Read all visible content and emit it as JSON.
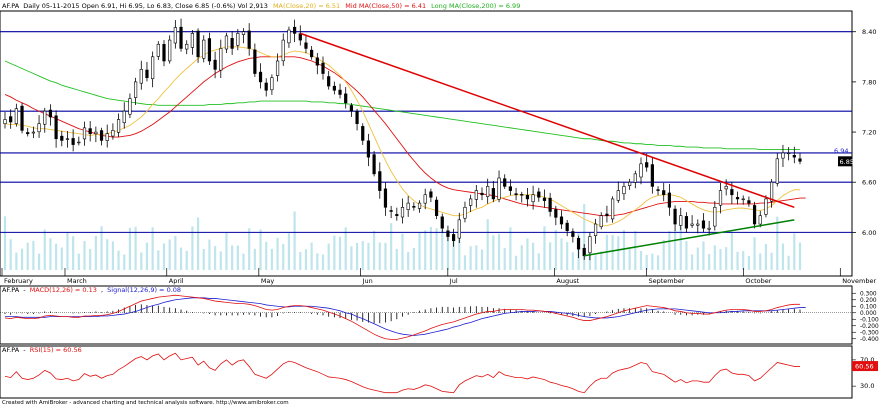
{
  "chart_data": [
    {
      "type": "candlestick",
      "ticker": "AF.PA",
      "header": {
        "symbol": "AF.PA",
        "info": "Daily 05-11-2015 Open 6.91, Hi 6.95, Lo 6.83, Close 6.85 (-0.6%) Vol 2,913",
        "ma20_label": "MA(Close,20) = 6.51",
        "ma50_label": "Mid MA(Close,50) = 6.41",
        "ma200_label": "Long MA(Close,200) = 6.99"
      },
      "colors": {
        "ma20": "#f0c040",
        "ma50": "#e01010",
        "ma200": "#20c020",
        "volume": "#bfe5ec",
        "candle": "#000000",
        "hline": "#0000a0",
        "downtrend": "#e00000",
        "uptrend": "#008000"
      },
      "ylim": [
        5.55,
        8.6
      ],
      "yticks": [
        "8.40",
        "7.80",
        "7.20",
        "6.60",
        "6.00"
      ],
      "horizontal_lines": [
        8.4,
        7.45,
        6.95,
        6.6,
        6.0
      ],
      "price_badge": "6.85",
      "level_label": "6.94",
      "months": [
        "February",
        "March",
        "April",
        "May",
        "Jun",
        "Jul",
        "August",
        "September",
        "October",
        "November"
      ],
      "closes": [
        7.35,
        7.32,
        7.48,
        7.22,
        7.18,
        7.2,
        7.3,
        7.45,
        7.38,
        7.12,
        7.1,
        7.12,
        7.05,
        7.08,
        7.25,
        7.18,
        7.2,
        7.1,
        7.18,
        7.22,
        7.35,
        7.45,
        7.6,
        7.8,
        7.95,
        7.85,
        8.1,
        8.25,
        8.05,
        8.3,
        8.45,
        8.2,
        8.25,
        8.38,
        8.1,
        8.3,
        8.05,
        7.95,
        8.2,
        8.35,
        8.2,
        8.38,
        8.4,
        8.2,
        7.9,
        7.8,
        7.7,
        7.85,
        8.05,
        8.3,
        8.42,
        8.38,
        8.3,
        8.2,
        8.1,
        8.0,
        7.9,
        7.75,
        7.7,
        7.65,
        7.55,
        7.45,
        7.3,
        7.1,
        6.9,
        6.7,
        6.5,
        6.3,
        6.25,
        6.2,
        6.3,
        6.35,
        6.3,
        6.35,
        6.45,
        6.42,
        6.2,
        6.05,
        5.95,
        5.9,
        6.15,
        6.3,
        6.4,
        6.5,
        6.45,
        6.55,
        6.4,
        6.65,
        6.55,
        6.5,
        6.45,
        6.45,
        6.4,
        6.45,
        6.42,
        6.38,
        6.25,
        6.18,
        6.1,
        6.02,
        5.95,
        5.8,
        5.72,
        5.95,
        6.1,
        6.2,
        6.2,
        6.4,
        6.5,
        6.55,
        6.6,
        6.7,
        6.82,
        6.78,
        6.55,
        6.5,
        6.45,
        6.3,
        6.1,
        6.2,
        6.05,
        6.1,
        6.1,
        6.05,
        6.05,
        6.3,
        6.5,
        6.55,
        6.45,
        6.4,
        6.4,
        6.35,
        6.1,
        6.2,
        6.4,
        6.6,
        6.88,
        6.95,
        6.95,
        6.9,
        6.85
      ],
      "ma20": [
        7.3,
        7.29,
        7.29,
        7.28,
        7.27,
        7.25,
        7.24,
        7.24,
        7.23,
        7.22,
        7.21,
        7.2,
        7.19,
        7.18,
        7.17,
        7.16,
        7.17,
        7.17,
        7.18,
        7.2,
        7.22,
        7.25,
        7.28,
        7.33,
        7.38,
        7.45,
        7.53,
        7.6,
        7.68,
        7.75,
        7.83,
        7.9,
        7.96,
        8.02,
        8.08,
        8.12,
        8.16,
        8.18,
        8.2,
        8.22,
        8.22,
        8.22,
        8.21,
        8.2,
        8.18,
        8.15,
        8.12,
        8.1,
        8.1,
        8.12,
        8.15,
        8.17,
        8.16,
        8.15,
        8.12,
        8.08,
        8.04,
        8.0,
        7.94,
        7.88,
        7.8,
        7.7,
        7.58,
        7.45,
        7.3,
        7.15,
        7.0,
        6.86,
        6.73,
        6.62,
        6.52,
        6.44,
        6.38,
        6.33,
        6.3,
        6.28,
        6.26,
        6.24,
        6.22,
        6.2,
        6.2,
        6.22,
        6.25,
        6.28,
        6.3,
        6.34,
        6.37,
        6.4,
        6.42,
        6.44,
        6.45,
        6.45,
        6.45,
        6.45,
        6.44,
        6.42,
        6.4,
        6.36,
        6.32,
        6.28,
        6.24,
        6.2,
        6.16,
        6.13,
        6.1,
        6.08,
        6.08,
        6.1,
        6.13,
        6.17,
        6.22,
        6.27,
        6.32,
        6.38,
        6.42,
        6.44,
        6.45,
        6.45,
        6.44,
        6.42,
        6.38,
        6.34,
        6.3,
        6.27,
        6.25,
        6.24,
        6.25,
        6.27,
        6.28,
        6.29,
        6.29,
        6.28,
        6.27,
        6.26,
        6.28,
        6.32,
        6.38,
        6.44,
        6.48,
        6.51,
        6.51
      ],
      "ma50": [
        7.65,
        7.62,
        7.58,
        7.55,
        7.52,
        7.48,
        7.45,
        7.42,
        7.39,
        7.36,
        7.33,
        7.3,
        7.27,
        7.24,
        7.22,
        7.2,
        7.18,
        7.16,
        7.15,
        7.14,
        7.14,
        7.15,
        7.16,
        7.18,
        7.21,
        7.25,
        7.29,
        7.34,
        7.39,
        7.44,
        7.5,
        7.56,
        7.62,
        7.68,
        7.74,
        7.8,
        7.85,
        7.9,
        7.94,
        7.98,
        8.01,
        8.04,
        8.06,
        8.08,
        8.09,
        8.1,
        8.1,
        8.1,
        8.1,
        8.1,
        8.1,
        8.1,
        8.09,
        8.07,
        8.05,
        8.02,
        7.99,
        7.95,
        7.91,
        7.86,
        7.81,
        7.75,
        7.69,
        7.62,
        7.54,
        7.46,
        7.38,
        7.3,
        7.21,
        7.12,
        7.03,
        6.94,
        6.86,
        6.78,
        6.71,
        6.65,
        6.6,
        6.56,
        6.53,
        6.51,
        6.5,
        6.49,
        6.48,
        6.47,
        6.46,
        6.45,
        6.44,
        6.42,
        6.4,
        6.38,
        6.36,
        6.34,
        6.33,
        6.32,
        6.31,
        6.3,
        6.29,
        6.28,
        6.27,
        6.26,
        6.25,
        6.24,
        6.23,
        6.22,
        6.21,
        6.2,
        6.2,
        6.2,
        6.21,
        6.22,
        6.24,
        6.26,
        6.28,
        6.3,
        6.32,
        6.34,
        6.35,
        6.36,
        6.37,
        6.37,
        6.37,
        6.37,
        6.36,
        6.36,
        6.35,
        6.35,
        6.34,
        6.34,
        6.34,
        6.34,
        6.34,
        6.34,
        6.34,
        6.35,
        6.35,
        6.36,
        6.37,
        6.38,
        6.39,
        6.4,
        6.41,
        6.41
      ],
      "ma200": [
        8.05,
        8.02,
        7.99,
        7.96,
        7.93,
        7.9,
        7.87,
        7.84,
        7.81,
        7.79,
        7.76,
        7.74,
        7.72,
        7.7,
        7.68,
        7.66,
        7.64,
        7.62,
        7.6,
        7.59,
        7.58,
        7.57,
        7.56,
        7.55,
        7.54,
        7.53,
        7.53,
        7.52,
        7.52,
        7.52,
        7.52,
        7.52,
        7.52,
        7.52,
        7.52,
        7.52,
        7.53,
        7.53,
        7.53,
        7.54,
        7.54,
        7.55,
        7.55,
        7.56,
        7.56,
        7.57,
        7.57,
        7.57,
        7.57,
        7.57,
        7.57,
        7.57,
        7.57,
        7.57,
        7.56,
        7.56,
        7.56,
        7.55,
        7.55,
        7.54,
        7.54,
        7.53,
        7.52,
        7.51,
        7.5,
        7.49,
        7.48,
        7.47,
        7.46,
        7.45,
        7.44,
        7.43,
        7.42,
        7.41,
        7.4,
        7.39,
        7.38,
        7.37,
        7.36,
        7.35,
        7.34,
        7.33,
        7.32,
        7.31,
        7.3,
        7.29,
        7.28,
        7.27,
        7.26,
        7.25,
        7.24,
        7.23,
        7.22,
        7.21,
        7.2,
        7.19,
        7.18,
        7.17,
        7.16,
        7.15,
        7.14,
        7.13,
        7.12,
        7.12,
        7.11,
        7.1,
        7.09,
        7.09,
        7.08,
        7.07,
        7.07,
        7.06,
        7.06,
        7.05,
        7.05,
        7.04,
        7.04,
        7.04,
        7.03,
        7.03,
        7.02,
        7.02,
        7.02,
        7.01,
        7.01,
        7.01,
        7.01,
        7.0,
        7.0,
        7.0,
        7.0,
        7.0,
        7.0,
        6.99,
        6.99,
        6.99,
        6.99,
        6.99,
        6.99,
        6.99,
        6.99
      ],
      "trendlines": [
        {
          "name": "downtrend",
          "from": {
            "bar": 52,
            "price": 8.38
          },
          "to": {
            "bar": 139,
            "price": 6.3
          }
        },
        {
          "name": "uptrend",
          "from": {
            "bar": 102,
            "price": 5.72
          },
          "to": {
            "bar": 139,
            "price": 6.15
          }
        }
      ]
    },
    {
      "type": "line",
      "label": "AF.PA - MACD(12,26) = 0.13, Signal(12,26,9) = 0.08",
      "symbol": "AF.PA",
      "macd_label": "MACD(12,26) = 0.13",
      "signal_label": "Signal(12,26,9) = 0.08",
      "colors": {
        "macd": "#e01010",
        "signal": "#2020d0",
        "hist": "#000000"
      },
      "ylim": [
        -0.45,
        0.35
      ],
      "yticks": [
        "0.300",
        "0.200",
        "0.100",
        "0.000",
        "-0.100",
        "-0.200",
        "-0.300",
        "-0.400"
      ],
      "macd": [
        -0.08,
        -0.09,
        -0.07,
        -0.08,
        -0.09,
        -0.09,
        -0.08,
        -0.05,
        -0.04,
        -0.05,
        -0.06,
        -0.06,
        -0.07,
        -0.07,
        -0.05,
        -0.05,
        -0.04,
        -0.04,
        -0.03,
        -0.01,
        0.02,
        0.06,
        0.1,
        0.14,
        0.18,
        0.2,
        0.22,
        0.24,
        0.25,
        0.26,
        0.27,
        0.26,
        0.25,
        0.24,
        0.23,
        0.22,
        0.2,
        0.18,
        0.17,
        0.16,
        0.15,
        0.14,
        0.14,
        0.13,
        0.11,
        0.08,
        0.05,
        0.04,
        0.05,
        0.08,
        0.1,
        0.11,
        0.11,
        0.1,
        0.08,
        0.06,
        0.04,
        0.01,
        -0.02,
        -0.05,
        -0.09,
        -0.13,
        -0.18,
        -0.23,
        -0.28,
        -0.33,
        -0.37,
        -0.4,
        -0.41,
        -0.41,
        -0.39,
        -0.37,
        -0.34,
        -0.31,
        -0.28,
        -0.24,
        -0.21,
        -0.18,
        -0.16,
        -0.14,
        -0.11,
        -0.08,
        -0.05,
        -0.02,
        0.0,
        0.02,
        0.02,
        0.04,
        0.05,
        0.05,
        0.05,
        0.05,
        0.04,
        0.04,
        0.03,
        0.02,
        0.01,
        -0.01,
        -0.03,
        -0.05,
        -0.07,
        -0.1,
        -0.12,
        -0.12,
        -0.1,
        -0.08,
        -0.06,
        -0.03,
        0.0,
        0.03,
        0.05,
        0.07,
        0.09,
        0.11,
        0.1,
        0.09,
        0.08,
        0.06,
        0.03,
        0.02,
        0.0,
        -0.01,
        -0.01,
        -0.02,
        -0.02,
        0.0,
        0.02,
        0.04,
        0.05,
        0.05,
        0.05,
        0.04,
        0.02,
        0.02,
        0.03,
        0.05,
        0.08,
        0.1,
        0.12,
        0.13,
        0.13
      ],
      "signal": [
        -0.06,
        -0.06,
        -0.06,
        -0.07,
        -0.07,
        -0.07,
        -0.07,
        -0.07,
        -0.06,
        -0.06,
        -0.06,
        -0.06,
        -0.06,
        -0.06,
        -0.06,
        -0.06,
        -0.06,
        -0.05,
        -0.05,
        -0.04,
        -0.03,
        -0.02,
        0.0,
        0.02,
        0.05,
        0.08,
        0.11,
        0.13,
        0.16,
        0.18,
        0.2,
        0.21,
        0.22,
        0.23,
        0.23,
        0.23,
        0.22,
        0.22,
        0.21,
        0.2,
        0.19,
        0.18,
        0.17,
        0.16,
        0.15,
        0.14,
        0.12,
        0.11,
        0.1,
        0.09,
        0.09,
        0.1,
        0.1,
        0.1,
        0.1,
        0.09,
        0.08,
        0.07,
        0.05,
        0.03,
        0.0,
        -0.02,
        -0.06,
        -0.09,
        -0.13,
        -0.17,
        -0.21,
        -0.25,
        -0.28,
        -0.31,
        -0.33,
        -0.34,
        -0.35,
        -0.34,
        -0.33,
        -0.31,
        -0.29,
        -0.27,
        -0.25,
        -0.22,
        -0.2,
        -0.17,
        -0.15,
        -0.12,
        -0.09,
        -0.07,
        -0.05,
        -0.03,
        -0.01,
        0.0,
        0.01,
        0.02,
        0.02,
        0.02,
        0.03,
        0.02,
        0.02,
        0.01,
        0.0,
        -0.01,
        -0.02,
        -0.04,
        -0.06,
        -0.07,
        -0.08,
        -0.08,
        -0.08,
        -0.07,
        -0.06,
        -0.04,
        -0.02,
        0.0,
        0.02,
        0.04,
        0.05,
        0.06,
        0.06,
        0.06,
        0.06,
        0.05,
        0.04,
        0.03,
        0.02,
        0.01,
        0.0,
        0.0,
        0.0,
        0.01,
        0.02,
        0.02,
        0.03,
        0.03,
        0.03,
        0.03,
        0.03,
        0.03,
        0.04,
        0.05,
        0.06,
        0.07,
        0.08,
        0.08
      ]
    },
    {
      "type": "line",
      "label": "AF.PA - RSI(15) = 60.56",
      "symbol": "AF.PA",
      "rsi_label": "RSI(15) = 60.56",
      "colors": {
        "rsi": "#e01010"
      },
      "ylim": [
        15,
        85
      ],
      "yticks": [
        "70.0",
        "30.0"
      ],
      "rsi_badge": "60.56",
      "rsi": [
        45,
        43,
        52,
        42,
        40,
        42,
        47,
        54,
        50,
        41,
        40,
        42,
        38,
        40,
        49,
        45,
        47,
        42,
        46,
        48,
        55,
        60,
        66,
        72,
        75,
        70,
        76,
        79,
        70,
        76,
        80,
        70,
        72,
        74,
        62,
        68,
        58,
        54,
        64,
        70,
        62,
        68,
        70,
        60,
        48,
        45,
        42,
        48,
        56,
        64,
        68,
        66,
        62,
        58,
        55,
        52,
        48,
        44,
        43,
        42,
        40,
        37,
        33,
        29,
        26,
        24,
        22,
        20,
        20,
        20,
        24,
        26,
        25,
        28,
        32,
        30,
        26,
        22,
        21,
        20,
        32,
        38,
        42,
        46,
        44,
        48,
        43,
        52,
        47,
        45,
        43,
        43,
        41,
        44,
        42,
        40,
        36,
        34,
        31,
        29,
        26,
        22,
        20,
        30,
        38,
        42,
        42,
        50,
        54,
        56,
        58,
        62,
        66,
        64,
        52,
        50,
        48,
        42,
        36,
        40,
        35,
        38,
        38,
        36,
        36,
        46,
        54,
        56,
        50,
        48,
        48,
        46,
        38,
        42,
        50,
        58,
        66,
        64,
        62,
        60,
        60
      ]
    }
  ],
  "footer": "Created with AmiBroker - advanced charting and technical analysis software. http://www.amibroker.com"
}
